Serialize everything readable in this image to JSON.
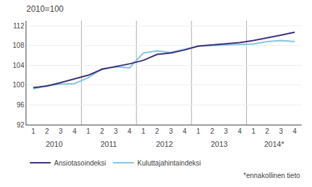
{
  "chart_data": {
    "type": "line",
    "title": "2010=100",
    "categories": [
      "1",
      "2",
      "3",
      "4",
      "1",
      "2",
      "3",
      "4",
      "1",
      "2",
      "3",
      "4",
      "1",
      "2",
      "3",
      "4",
      "1",
      "2",
      "3",
      "4"
    ],
    "series": [
      {
        "name": "Ansiotasoindeksi",
        "color": "#3d2b7a",
        "values": [
          99.5,
          99.8,
          100.5,
          101.2,
          102.0,
          103.2,
          103.7,
          104.3,
          105.0,
          106.2,
          106.5,
          107.1,
          107.9,
          108.1,
          108.3,
          108.6,
          109.0,
          109.5,
          110.1,
          110.7
        ]
      },
      {
        "name": "Kuluttajahintaindeksi",
        "color": "#82c4e0",
        "values": [
          99.2,
          99.9,
          100.2,
          100.3,
          101.5,
          103.3,
          103.7,
          103.5,
          106.5,
          106.9,
          106.6,
          107.3,
          107.9,
          108.0,
          108.1,
          108.1,
          108.3,
          108.8,
          109.0,
          108.8
        ]
      }
    ],
    "ylim": [
      92,
      113
    ],
    "yticks": [
      92,
      96,
      100,
      104,
      108,
      112
    ],
    "grid": true,
    "legend": "bottom",
    "annotations": [
      "2010",
      "2011",
      "2012",
      "2013",
      "2014*",
      "*ennakollinen tieto"
    ]
  }
}
